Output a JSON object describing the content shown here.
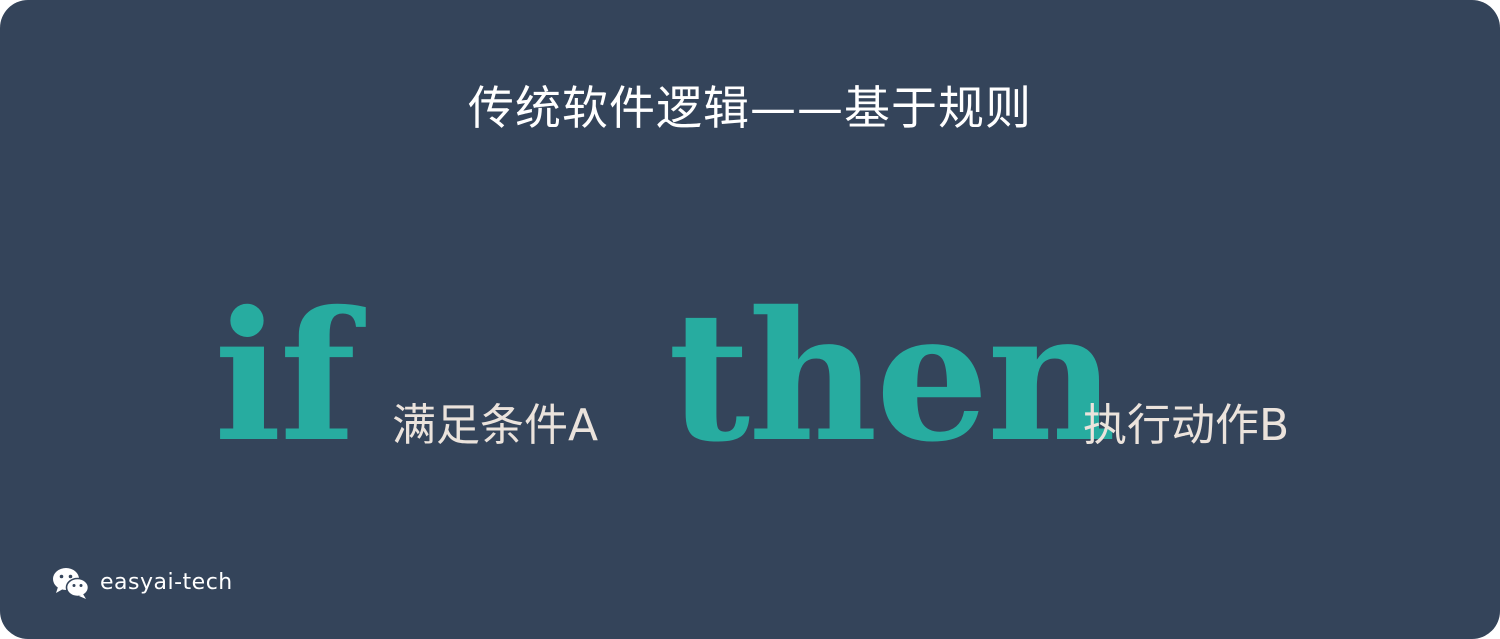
{
  "title": "传统软件逻辑——基于规则",
  "rule": {
    "if_keyword": "if",
    "condition": "满足条件A",
    "then_keyword": "then",
    "action": "执行动作B"
  },
  "footer": {
    "icon": "wechat-icon",
    "handle": "easyai-tech"
  },
  "colors": {
    "background": "#34445a",
    "keyword": "#27aca0",
    "phrase": "#ebe3dc",
    "title": "#ffffff"
  }
}
